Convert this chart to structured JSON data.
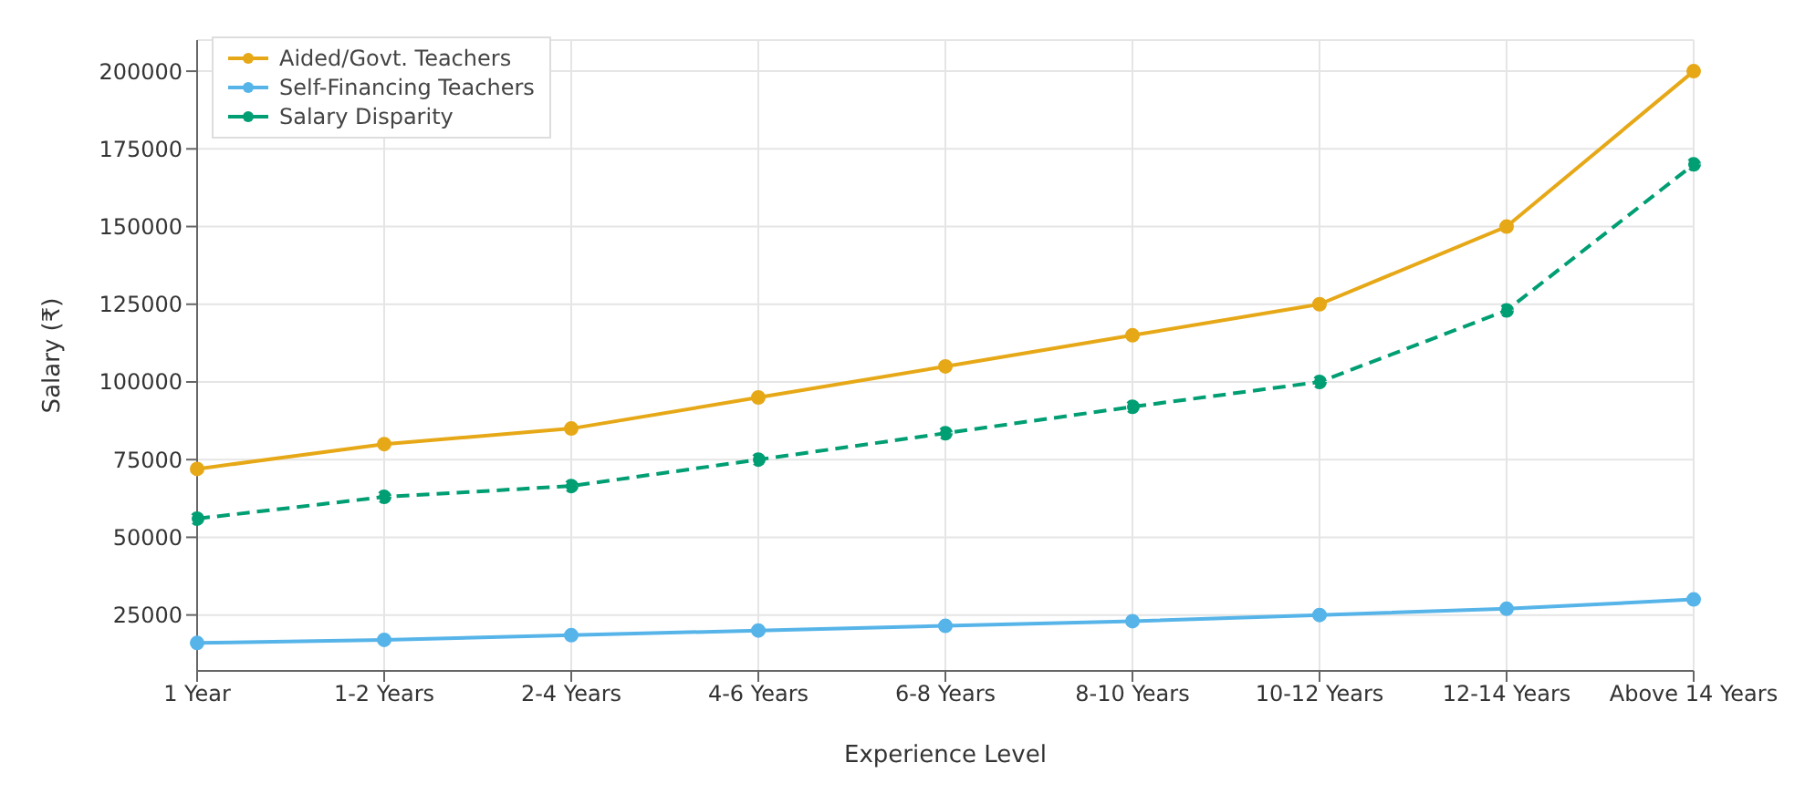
{
  "chart_data": {
    "type": "line",
    "xlabel": "Experience Level",
    "ylabel": "Salary (₹)",
    "categories": [
      "1 Year",
      "1-2 Years",
      "2-4 Years",
      "4-6 Years",
      "6-8 Years",
      "8-10 Years",
      "10-12 Years",
      "12-14 Years",
      "Above 14 Years"
    ],
    "series": [
      {
        "name": "Aided/Govt. Teachers",
        "color": "#e6a817",
        "values": [
          72000,
          80000,
          85000,
          95000,
          105000,
          115000,
          125000,
          150000,
          200000
        ]
      },
      {
        "name": "Self-Financing Teachers",
        "color": "#56b4e9",
        "values": [
          16000,
          17000,
          18500,
          20000,
          21500,
          23000,
          25000,
          27000,
          30000
        ]
      },
      {
        "name": "Salary Disparity",
        "color": "#009e73",
        "line_style": "dashed",
        "values": [
          56000,
          63000,
          66500,
          75000,
          83500,
          92000,
          100000,
          123000,
          170000
        ]
      }
    ],
    "ylim": [
      7000,
      210000
    ],
    "yticks": [
      25000,
      50000,
      75000,
      100000,
      125000,
      150000,
      175000,
      200000
    ],
    "grid": true,
    "legend": "top left",
    "marker": "circle"
  }
}
